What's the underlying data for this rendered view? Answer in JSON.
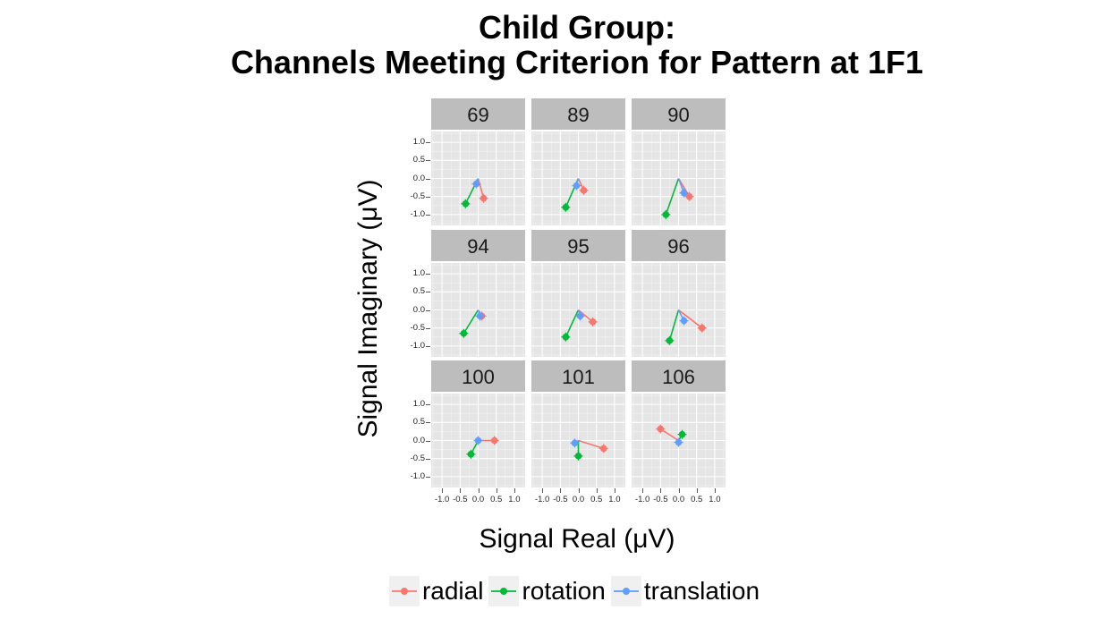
{
  "chart_data": {
    "type": "line",
    "title": "Child Group:",
    "subtitle": "Channels Meeting Criterion for Pattern at 1F1",
    "xlabel": "Signal Real (μV)",
    "ylabel": "Signal Imaginary (μV)",
    "xlim": [
      -1.3,
      1.3
    ],
    "ylim": [
      -1.3,
      1.3
    ],
    "x_ticks": [
      "-1.0",
      "-0.5",
      "0.0",
      "0.5",
      "1.0"
    ],
    "y_ticks": [
      "1.0",
      "0.5",
      "0.0",
      "-0.5",
      "-1.0"
    ],
    "grid": true,
    "legend_position": "bottom",
    "series": [
      {
        "name": "radial",
        "color": "#F8766D"
      },
      {
        "name": "rotation",
        "color": "#00BA38"
      },
      {
        "name": "translation",
        "color": "#619CFF"
      }
    ],
    "facets": [
      {
        "label": "69",
        "points": {
          "radial": [
            0.15,
            -0.55
          ],
          "rotation": [
            -0.35,
            -0.7
          ],
          "translation": [
            -0.05,
            -0.15
          ]
        }
      },
      {
        "label": "89",
        "points": {
          "radial": [
            0.15,
            -0.33
          ],
          "rotation": [
            -0.35,
            -0.8
          ],
          "translation": [
            -0.05,
            -0.2
          ]
        }
      },
      {
        "label": "90",
        "points": {
          "radial": [
            0.3,
            -0.5
          ],
          "rotation": [
            -0.35,
            -1.0
          ],
          "translation": [
            0.15,
            -0.4
          ]
        }
      },
      {
        "label": "94",
        "points": {
          "radial": [
            0.1,
            -0.17
          ],
          "rotation": [
            -0.4,
            -0.65
          ],
          "translation": [
            0.05,
            -0.17
          ]
        }
      },
      {
        "label": "95",
        "points": {
          "radial": [
            0.4,
            -0.33
          ],
          "rotation": [
            -0.35,
            -0.75
          ],
          "translation": [
            0.05,
            -0.17
          ]
        }
      },
      {
        "label": "96",
        "points": {
          "radial": [
            0.65,
            -0.5
          ],
          "rotation": [
            -0.25,
            -0.85
          ],
          "translation": [
            0.15,
            -0.3
          ]
        }
      },
      {
        "label": "100",
        "points": {
          "radial": [
            0.45,
            0.0
          ],
          "rotation": [
            -0.2,
            -0.38
          ],
          "translation": [
            0.0,
            0.0
          ]
        }
      },
      {
        "label": "101",
        "points": {
          "radial": [
            0.7,
            -0.22
          ],
          "rotation": [
            0.0,
            -0.43
          ],
          "translation": [
            -0.1,
            -0.07
          ]
        }
      },
      {
        "label": "106",
        "points": {
          "radial": [
            -0.5,
            0.32
          ],
          "rotation": [
            0.1,
            0.17
          ],
          "translation": [
            0.0,
            -0.05
          ]
        }
      }
    ]
  }
}
